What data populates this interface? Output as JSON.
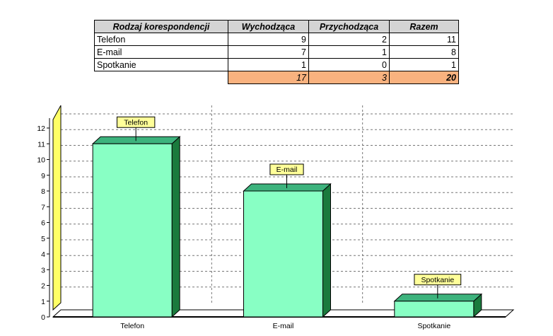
{
  "table": {
    "headers": [
      "Rodzaj korespondencji",
      "Wychodząca",
      "Przychodząca",
      "Razem"
    ],
    "rows": [
      {
        "name": "Telefon",
        "out": "9",
        "in": "2",
        "total": "11"
      },
      {
        "name": "E-mail",
        "out": "7",
        "in": "1",
        "total": "8"
      },
      {
        "name": "Spotkanie",
        "out": "1",
        "in": "0",
        "total": "1"
      }
    ],
    "totals": {
      "out": "17",
      "in": "3",
      "total": "20"
    }
  },
  "chart_data": {
    "type": "bar",
    "categories": [
      "Telefon",
      "E-mail",
      "Spotkanie"
    ],
    "values": [
      11,
      8,
      1
    ],
    "data_labels": [
      "Telefon",
      "E-mail",
      "Spotkanie"
    ],
    "yticks": [
      "0",
      "1",
      "2",
      "3",
      "4",
      "5",
      "6",
      "7",
      "8",
      "9",
      "10",
      "11",
      "12"
    ],
    "ylim": [
      0,
      12
    ],
    "grid": true,
    "style_3d": true,
    "colors": {
      "bar_front": "#88ffc4",
      "bar_top": "#3db37d",
      "bar_side": "#1a7a3d",
      "label_bg": "#ffff99",
      "wall": "#ffff66"
    }
  }
}
